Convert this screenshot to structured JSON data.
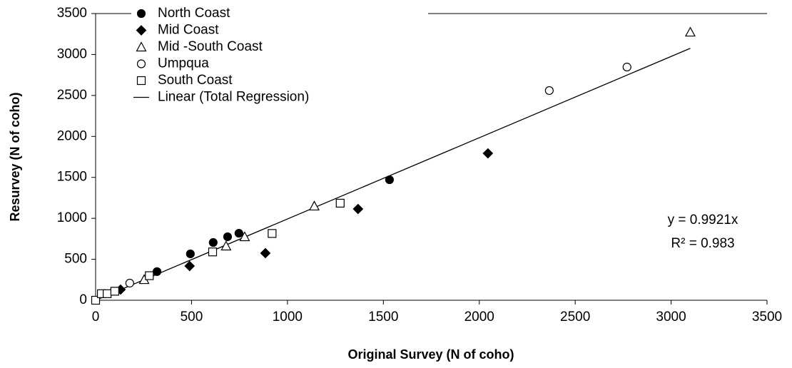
{
  "chart_data": {
    "type": "scatter",
    "xlabel": "Original Survey (N of coho)",
    "ylabel": "Resurvey (N of coho)",
    "xlim": [
      0,
      3500
    ],
    "ylim": [
      0,
      3500
    ],
    "xticks": [
      0,
      500,
      1000,
      1500,
      2000,
      2500,
      3000,
      3500
    ],
    "yticks": [
      0,
      500,
      1000,
      1500,
      2000,
      2500,
      3000,
      3500
    ],
    "grid": false,
    "legend": "top-left",
    "series": [
      {
        "name": "North Coast",
        "color": "#000000",
        "marker": "circle-filled",
        "x": [
          320,
          494,
          613,
          688,
          747,
          1532
        ],
        "values": [
          350,
          566,
          705,
          775,
          818,
          1471
        ]
      },
      {
        "name": "Mid Coast",
        "color": "#000000",
        "marker": "diamond-filled",
        "x": [
          130,
          490,
          885,
          1368,
          2045
        ],
        "values": [
          130,
          418,
          575,
          1114,
          1793
        ]
      },
      {
        "name": "Mid -South Coast",
        "color": "#000000",
        "marker": "triangle-open",
        "x": [
          253,
          680,
          777,
          1140,
          3100
        ],
        "values": [
          252,
          662,
          775,
          1150,
          3273
        ]
      },
      {
        "name": "Umpqua",
        "color": "#000000",
        "marker": "circle-open",
        "x": [
          178,
          2365,
          2770
        ],
        "values": [
          209,
          2560,
          2847
        ]
      },
      {
        "name": "South Coast",
        "color": "#000000",
        "marker": "square-open",
        "x": [
          0,
          30,
          60,
          100,
          280,
          610,
          920,
          1275
        ],
        "values": [
          0,
          80,
          80,
          110,
          300,
          590,
          815,
          1185
        ]
      }
    ],
    "trendline": {
      "name": "Linear (Total Regression)",
      "slope": 0.9921,
      "color": "#000000"
    },
    "annotations": [
      "y = 0.9921x",
      "R² = 0.983"
    ]
  }
}
